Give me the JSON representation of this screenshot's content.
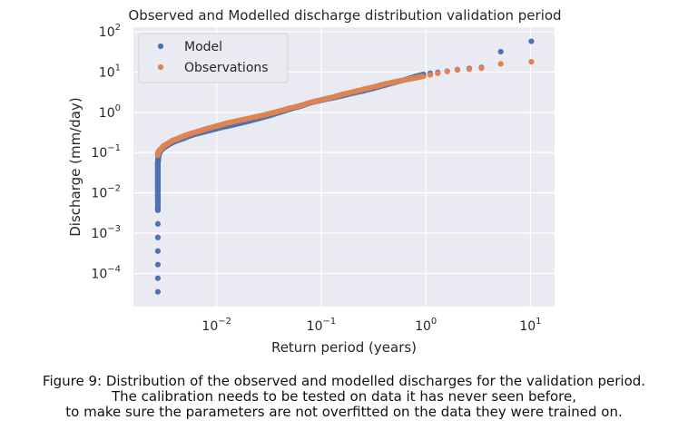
{
  "chart_data": {
    "type": "scatter",
    "title": "Observed and Modelled discharge distribution validation period",
    "xlabel": "Return period (years)",
    "ylabel": "Discharge (mm/day)",
    "x_scale": "log",
    "y_scale": "log",
    "xlim": [
      0.0016,
      17
    ],
    "ylim": [
      1.5e-05,
      130
    ],
    "grid": true,
    "legend_position": "upper-left",
    "x_ticks": [
      {
        "value": 0.01,
        "base": "10",
        "exp": "−2"
      },
      {
        "value": 0.1,
        "base": "10",
        "exp": "−1"
      },
      {
        "value": 1,
        "base": "10",
        "exp": "0"
      },
      {
        "value": 10,
        "base": "10",
        "exp": "1"
      }
    ],
    "y_ticks": [
      {
        "value": 0.0001,
        "base": "10",
        "exp": "−4"
      },
      {
        "value": 0.001,
        "base": "10",
        "exp": "−3"
      },
      {
        "value": 0.01,
        "base": "10",
        "exp": "−2"
      },
      {
        "value": 0.1,
        "base": "10",
        "exp": "−1"
      },
      {
        "value": 1,
        "base": "10",
        "exp": "0"
      },
      {
        "value": 10,
        "base": "10",
        "exp": "1"
      },
      {
        "value": 100,
        "base": "10",
        "exp": "2"
      }
    ],
    "series": [
      {
        "name": "Model",
        "color": "#4c72b0",
        "points": [
          [
            0.00274,
            3.5e-05
          ],
          [
            0.00274,
            0.0037
          ],
          [
            0.00274,
            0.004
          ],
          [
            0.00274,
            0.0065
          ],
          [
            0.00274,
            0.008
          ],
          [
            0.00274,
            0.0095
          ],
          [
            0.00274,
            0.012
          ],
          [
            0.00274,
            0.015
          ],
          [
            0.00274,
            0.018
          ],
          [
            0.00274,
            0.022
          ],
          [
            0.00274,
            0.027
          ],
          [
            0.00274,
            0.033
          ],
          [
            0.00274,
            0.04
          ],
          [
            0.00274,
            0.048
          ],
          [
            0.00274,
            0.056
          ],
          [
            0.00275,
            0.062
          ],
          [
            0.00276,
            0.07
          ],
          [
            0.00278,
            0.08
          ],
          [
            0.0028,
            0.09
          ],
          [
            0.00285,
            0.1
          ],
          [
            0.0029,
            0.11
          ],
          [
            0.003,
            0.12
          ],
          [
            0.0031,
            0.13
          ],
          [
            0.0033,
            0.145
          ],
          [
            0.0035,
            0.16
          ],
          [
            0.0038,
            0.18
          ],
          [
            0.0042,
            0.2
          ],
          [
            0.0047,
            0.22
          ],
          [
            0.0053,
            0.25
          ],
          [
            0.006,
            0.28
          ],
          [
            0.007,
            0.31
          ],
          [
            0.008,
            0.34
          ],
          [
            0.0095,
            0.38
          ],
          [
            0.011,
            0.42
          ],
          [
            0.013,
            0.46
          ],
          [
            0.016,
            0.52
          ],
          [
            0.02,
            0.6
          ],
          [
            0.025,
            0.7
          ],
          [
            0.032,
            0.83
          ],
          [
            0.04,
            1.0
          ],
          [
            0.05,
            1.2
          ],
          [
            0.065,
            1.45
          ],
          [
            0.08,
            1.75
          ],
          [
            0.1,
            2.0
          ],
          [
            0.13,
            2.3
          ],
          [
            0.16,
            2.6
          ],
          [
            0.2,
            3.0
          ],
          [
            0.25,
            3.4
          ],
          [
            0.32,
            4.0
          ],
          [
            0.4,
            4.7
          ],
          [
            0.5,
            5.5
          ],
          [
            0.65,
            6.6
          ],
          [
            0.8,
            7.8
          ],
          [
            0.95,
            8.8
          ],
          [
            1.1,
            9.3
          ],
          [
            1.3,
            9.8
          ],
          [
            1.6,
            10.5
          ],
          [
            2.0,
            11.5
          ],
          [
            2.6,
            12.3
          ],
          [
            3.4,
            13.0
          ],
          [
            5.2,
            32
          ],
          [
            10.2,
            58
          ]
        ]
      },
      {
        "name": "Observations",
        "color": "#dd8452",
        "points": [
          [
            0.00274,
            0.085
          ],
          [
            0.00274,
            0.09
          ],
          [
            0.00276,
            0.1
          ],
          [
            0.0028,
            0.11
          ],
          [
            0.0029,
            0.12
          ],
          [
            0.003,
            0.13
          ],
          [
            0.0031,
            0.145
          ],
          [
            0.0033,
            0.16
          ],
          [
            0.0035,
            0.175
          ],
          [
            0.0038,
            0.2
          ],
          [
            0.0042,
            0.22
          ],
          [
            0.0047,
            0.25
          ],
          [
            0.0053,
            0.28
          ],
          [
            0.006,
            0.31
          ],
          [
            0.007,
            0.35
          ],
          [
            0.008,
            0.39
          ],
          [
            0.0095,
            0.44
          ],
          [
            0.011,
            0.49
          ],
          [
            0.013,
            0.55
          ],
          [
            0.016,
            0.62
          ],
          [
            0.02,
            0.7
          ],
          [
            0.025,
            0.8
          ],
          [
            0.032,
            0.93
          ],
          [
            0.04,
            1.08
          ],
          [
            0.05,
            1.27
          ],
          [
            0.065,
            1.5
          ],
          [
            0.08,
            1.78
          ],
          [
            0.1,
            2.05
          ],
          [
            0.13,
            2.4
          ],
          [
            0.16,
            2.8
          ],
          [
            0.2,
            3.2
          ],
          [
            0.25,
            3.7
          ],
          [
            0.32,
            4.3
          ],
          [
            0.4,
            5.0
          ],
          [
            0.5,
            5.7
          ],
          [
            0.65,
            6.5
          ],
          [
            0.8,
            7.2
          ],
          [
            0.95,
            7.9
          ],
          [
            1.1,
            8.5
          ],
          [
            1.3,
            9.3
          ],
          [
            1.6,
            10.3
          ],
          [
            2.0,
            11.2
          ],
          [
            2.6,
            11.8
          ],
          [
            3.4,
            12.5
          ],
          [
            5.2,
            16
          ],
          [
            10.2,
            18
          ]
        ]
      }
    ]
  },
  "figure_caption": {
    "line1": "Figure 9: Distribution of the observed and modelled discharges for the validation period.",
    "line2": "The calibration needs to be tested on data it has never seen before,",
    "line3": "to make sure the parameters are not overfitted on the data they were trained on."
  }
}
